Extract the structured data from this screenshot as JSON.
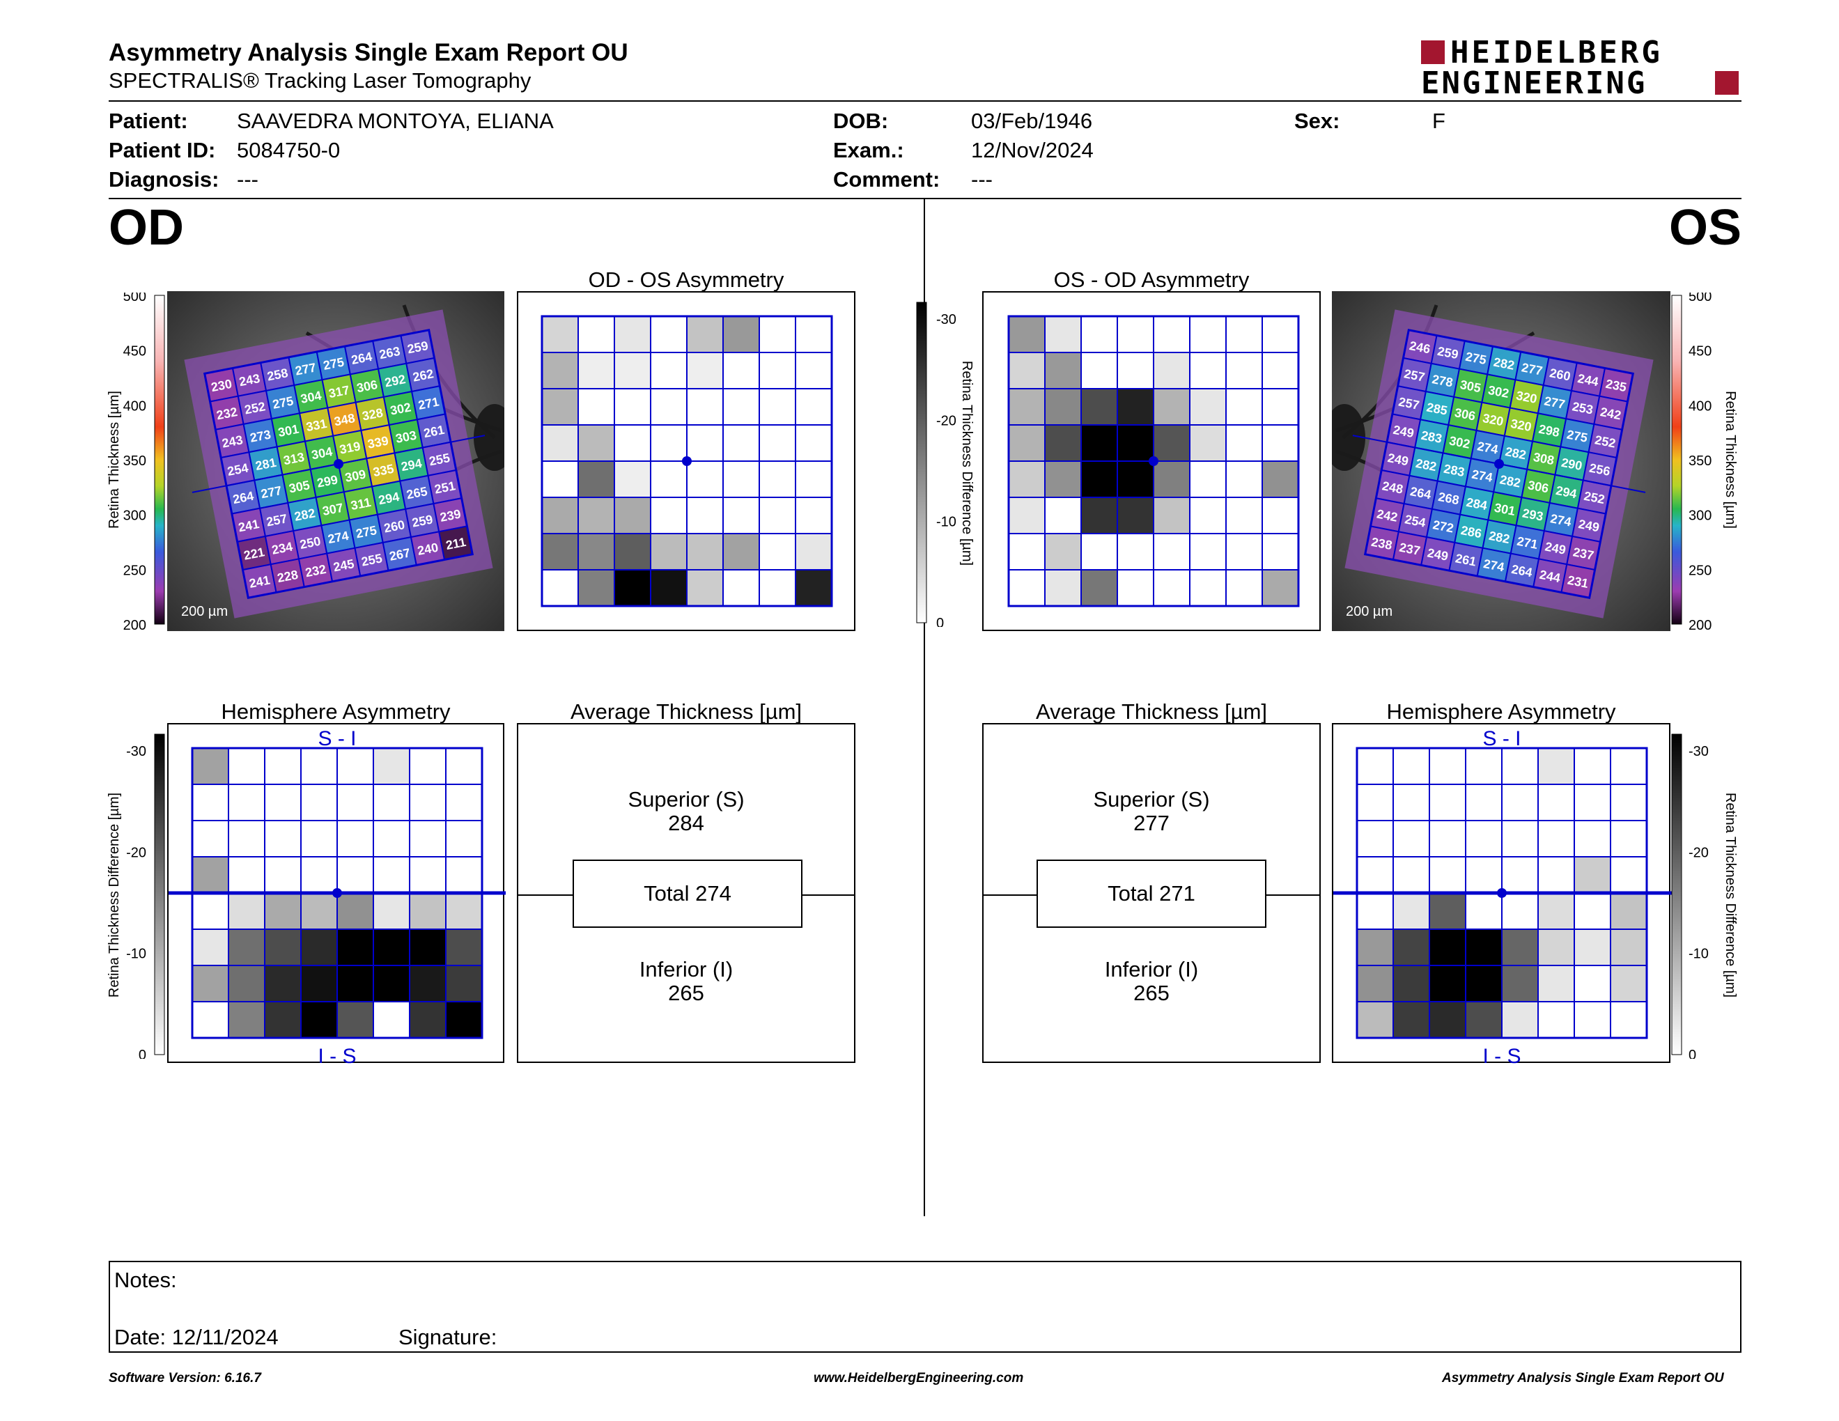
{
  "header": {
    "title": "Asymmetry Analysis Single Exam Report OU",
    "subtitle": "SPECTRALIS® Tracking Laser Tomography",
    "logo_line1": "HEIDELBERG",
    "logo_line2": "ENGINEERING",
    "brand_color": "#a3162f"
  },
  "patient": {
    "patient_label": "Patient:",
    "patient_value": "SAAVEDRA MONTOYA, ELIANA",
    "id_label": "Patient ID:",
    "id_value": "5084750-0",
    "diagnosis_label": "Diagnosis:",
    "diagnosis_value": "---",
    "dob_label": "DOB:",
    "dob_value": "03/Feb/1946",
    "exam_label": "Exam.:",
    "exam_value": "12/Nov/2024",
    "comment_label": "Comment:",
    "comment_value": "---",
    "sex_label": "Sex:",
    "sex_value": "F"
  },
  "od": {
    "label": "OD",
    "asym_title": "OD - OS Asymmetry",
    "hemi_title": "Hemisphere Asymmetry",
    "avg_title": "Average Thickness [µm]",
    "superior_label": "Superior (S)",
    "superior_value": "284",
    "total_label": "Total 274",
    "inferior_label": "Inferior (I)",
    "inferior_value": "265",
    "hemi_top": "S - I",
    "hemi_bottom": "I - S",
    "scale_label": "200 µm",
    "thickness_grid": [
      [
        "230",
        "243",
        "258",
        "277",
        "275",
        "264",
        "263",
        "259"
      ],
      [
        "232",
        "252",
        "275",
        "304",
        "317",
        "306",
        "292",
        "262"
      ],
      [
        "243",
        "273",
        "301",
        "331",
        "348",
        "328",
        "302",
        "271"
      ],
      [
        "254",
        "281",
        "313",
        "304",
        "319",
        "339",
        "303",
        "261"
      ],
      [
        "264",
        "277",
        "305",
        "299",
        "309",
        "335",
        "294",
        "255"
      ],
      [
        "241",
        "257",
        "282",
        "307",
        "311",
        "294",
        "265",
        "251"
      ],
      [
        "221",
        "234",
        "250",
        "274",
        "275",
        "260",
        "259",
        "239"
      ],
      [
        "241",
        "228",
        "232",
        "245",
        "255",
        "267",
        "240",
        "211"
      ]
    ],
    "asym_grid": [
      [
        5,
        0,
        3,
        0,
        7,
        12,
        0,
        0
      ],
      [
        9,
        2,
        2,
        0,
        2,
        0,
        0,
        0
      ],
      [
        9,
        0,
        0,
        0,
        0,
        0,
        0,
        0
      ],
      [
        3,
        8,
        0,
        0,
        0,
        0,
        0,
        0
      ],
      [
        0,
        17,
        2,
        0,
        0,
        0,
        0,
        0
      ],
      [
        10,
        9,
        10,
        0,
        0,
        0,
        0,
        0
      ],
      [
        16,
        14,
        19,
        8,
        7,
        11,
        0,
        3
      ],
      [
        0,
        15,
        30,
        28,
        6,
        0,
        0,
        26
      ]
    ],
    "hemi_grid": [
      [
        11,
        0,
        0,
        0,
        0,
        3,
        0,
        0
      ],
      [
        0,
        0,
        0,
        0,
        0,
        0,
        0,
        0
      ],
      [
        0,
        0,
        0,
        0,
        0,
        0,
        0,
        0
      ],
      [
        11,
        0,
        0,
        0,
        0,
        0,
        0,
        0
      ],
      [
        0,
        4,
        10,
        8,
        13,
        3,
        7,
        5
      ],
      [
        3,
        17,
        21,
        25,
        30,
        30,
        30,
        21
      ],
      [
        11,
        17,
        25,
        28,
        30,
        30,
        27,
        23
      ],
      [
        0,
        15,
        24,
        30,
        20,
        0,
        24,
        30
      ]
    ]
  },
  "os": {
    "label": "OS",
    "asym_title": "OS - OD Asymmetry",
    "hemi_title": "Hemisphere Asymmetry",
    "avg_title": "Average Thickness [µm]",
    "superior_label": "Superior (S)",
    "superior_value": "277",
    "total_label": "Total 271",
    "inferior_label": "Inferior (I)",
    "inferior_value": "265",
    "hemi_top": "S - I",
    "hemi_bottom": "I - S",
    "scale_label": "200 µm",
    "thickness_grid": [
      [
        "246",
        "259",
        "275",
        "282",
        "277",
        "260",
        "244",
        "235"
      ],
      [
        "257",
        "278",
        "305",
        "302",
        "320",
        "277",
        "253",
        "242"
      ],
      [
        "257",
        "285",
        "306",
        "320",
        "320",
        "298",
        "275",
        "252"
      ],
      [
        "249",
        "283",
        "302",
        "274",
        "282",
        "308",
        "290",
        "256"
      ],
      [
        "249",
        "282",
        "283",
        "274",
        "282",
        "306",
        "294",
        "252"
      ],
      [
        "248",
        "264",
        "268",
        "284",
        "301",
        "293",
        "274",
        "249"
      ],
      [
        "242",
        "254",
        "272",
        "286",
        "282",
        "271",
        "249",
        "237"
      ],
      [
        "238",
        "237",
        "249",
        "261",
        "274",
        "264",
        "244",
        "231"
      ]
    ],
    "asym_grid": [
      [
        12,
        3,
        0,
        0,
        0,
        0,
        0,
        0
      ],
      [
        5,
        12,
        0,
        0,
        3,
        0,
        0,
        0
      ],
      [
        9,
        14,
        21,
        26,
        9,
        3,
        0,
        0
      ],
      [
        9,
        21,
        30,
        30,
        20,
        4,
        0,
        0
      ],
      [
        6,
        13,
        30,
        30,
        15,
        0,
        0,
        13
      ],
      [
        3,
        0,
        24,
        24,
        7,
        0,
        0,
        0
      ],
      [
        0,
        6,
        0,
        0,
        0,
        0,
        0,
        0
      ],
      [
        0,
        3,
        16,
        0,
        0,
        0,
        0,
        10
      ]
    ],
    "hemi_grid": [
      [
        0,
        0,
        0,
        0,
        0,
        3,
        0,
        0
      ],
      [
        0,
        0,
        0,
        0,
        0,
        0,
        0,
        0
      ],
      [
        0,
        0,
        0,
        0,
        0,
        0,
        0,
        0
      ],
      [
        0,
        0,
        0,
        0,
        0,
        0,
        6,
        0
      ],
      [
        0,
        3,
        19,
        0,
        0,
        4,
        0,
        7
      ],
      [
        12,
        22,
        30,
        30,
        18,
        5,
        3,
        6
      ],
      [
        13,
        23,
        30,
        30,
        18,
        3,
        0,
        5
      ],
      [
        8,
        23,
        25,
        21,
        3,
        0,
        0,
        0
      ]
    ]
  },
  "colorbar": {
    "thickness_ticks": [
      "500",
      "450",
      "400",
      "350",
      "300",
      "250",
      "200"
    ],
    "thickness_label": "Retina Thickness [µm]",
    "diff_ticks": [
      "-30",
      "-20",
      "-10",
      "0"
    ],
    "diff_label": "Retina Thickness Difference [µm]"
  },
  "notes": {
    "notes_label": "Notes:",
    "date_label": "Date: 12/11/2024",
    "signature_label": "Signature:"
  },
  "footer": {
    "software": "Software Version: 6.16.7",
    "website": "www.HeidelbergEngineering.com",
    "report": "Asymmetry Analysis Single Exam Report OU"
  },
  "colors": {
    "grid_blue": "#0000cc",
    "brand": "#a3162f"
  }
}
